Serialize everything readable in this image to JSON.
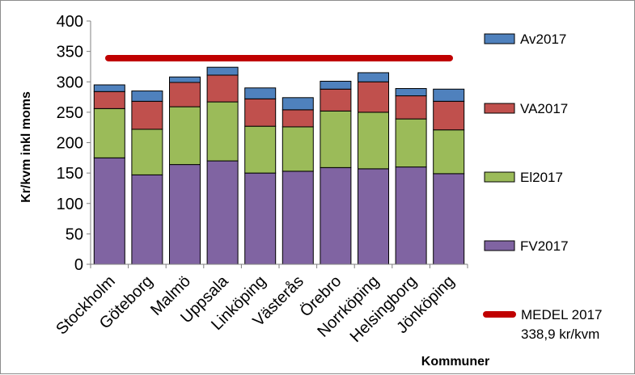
{
  "chart_data": {
    "type": "bar",
    "stacked": true,
    "title": "",
    "xlabel": "Kommuner",
    "ylabel": "Kr/kvm inkl moms",
    "ylim": [
      0,
      400
    ],
    "yticks": [
      0,
      50,
      100,
      150,
      200,
      250,
      300,
      350,
      400
    ],
    "grid": false,
    "legend_position": "right",
    "categories": [
      "Stockholm",
      "Göteborg",
      "Malmö",
      "Uppsala",
      "Linköping",
      "Västerås",
      "Örebro",
      "Norrköping",
      "Helsingborg",
      "Jönköping"
    ],
    "series": [
      {
        "name": "FV2017",
        "color": "#8064a2",
        "values": [
          175,
          147,
          164,
          170,
          150,
          153,
          159,
          157,
          160,
          149
        ]
      },
      {
        "name": "El2017",
        "color": "#9bbb59",
        "values": [
          81,
          75,
          95,
          97,
          77,
          73,
          93,
          93,
          79,
          72
        ]
      },
      {
        "name": "VA2017",
        "color": "#c0504d",
        "values": [
          28,
          46,
          40,
          44,
          45,
          28,
          36,
          50,
          38,
          47
        ]
      },
      {
        "name": "Av2017",
        "color": "#4f81bd",
        "values": [
          11,
          17,
          9,
          13,
          18,
          20,
          13,
          15,
          12,
          20
        ]
      }
    ],
    "reference_line": {
      "name": "MEDEL 2017",
      "value": 338.9,
      "label": "338,9 kr/kvm",
      "color": "#c00000"
    },
    "legend_order": [
      "Av2017",
      "VA2017",
      "El2017",
      "FV2017",
      "MEDEL 2017"
    ]
  }
}
